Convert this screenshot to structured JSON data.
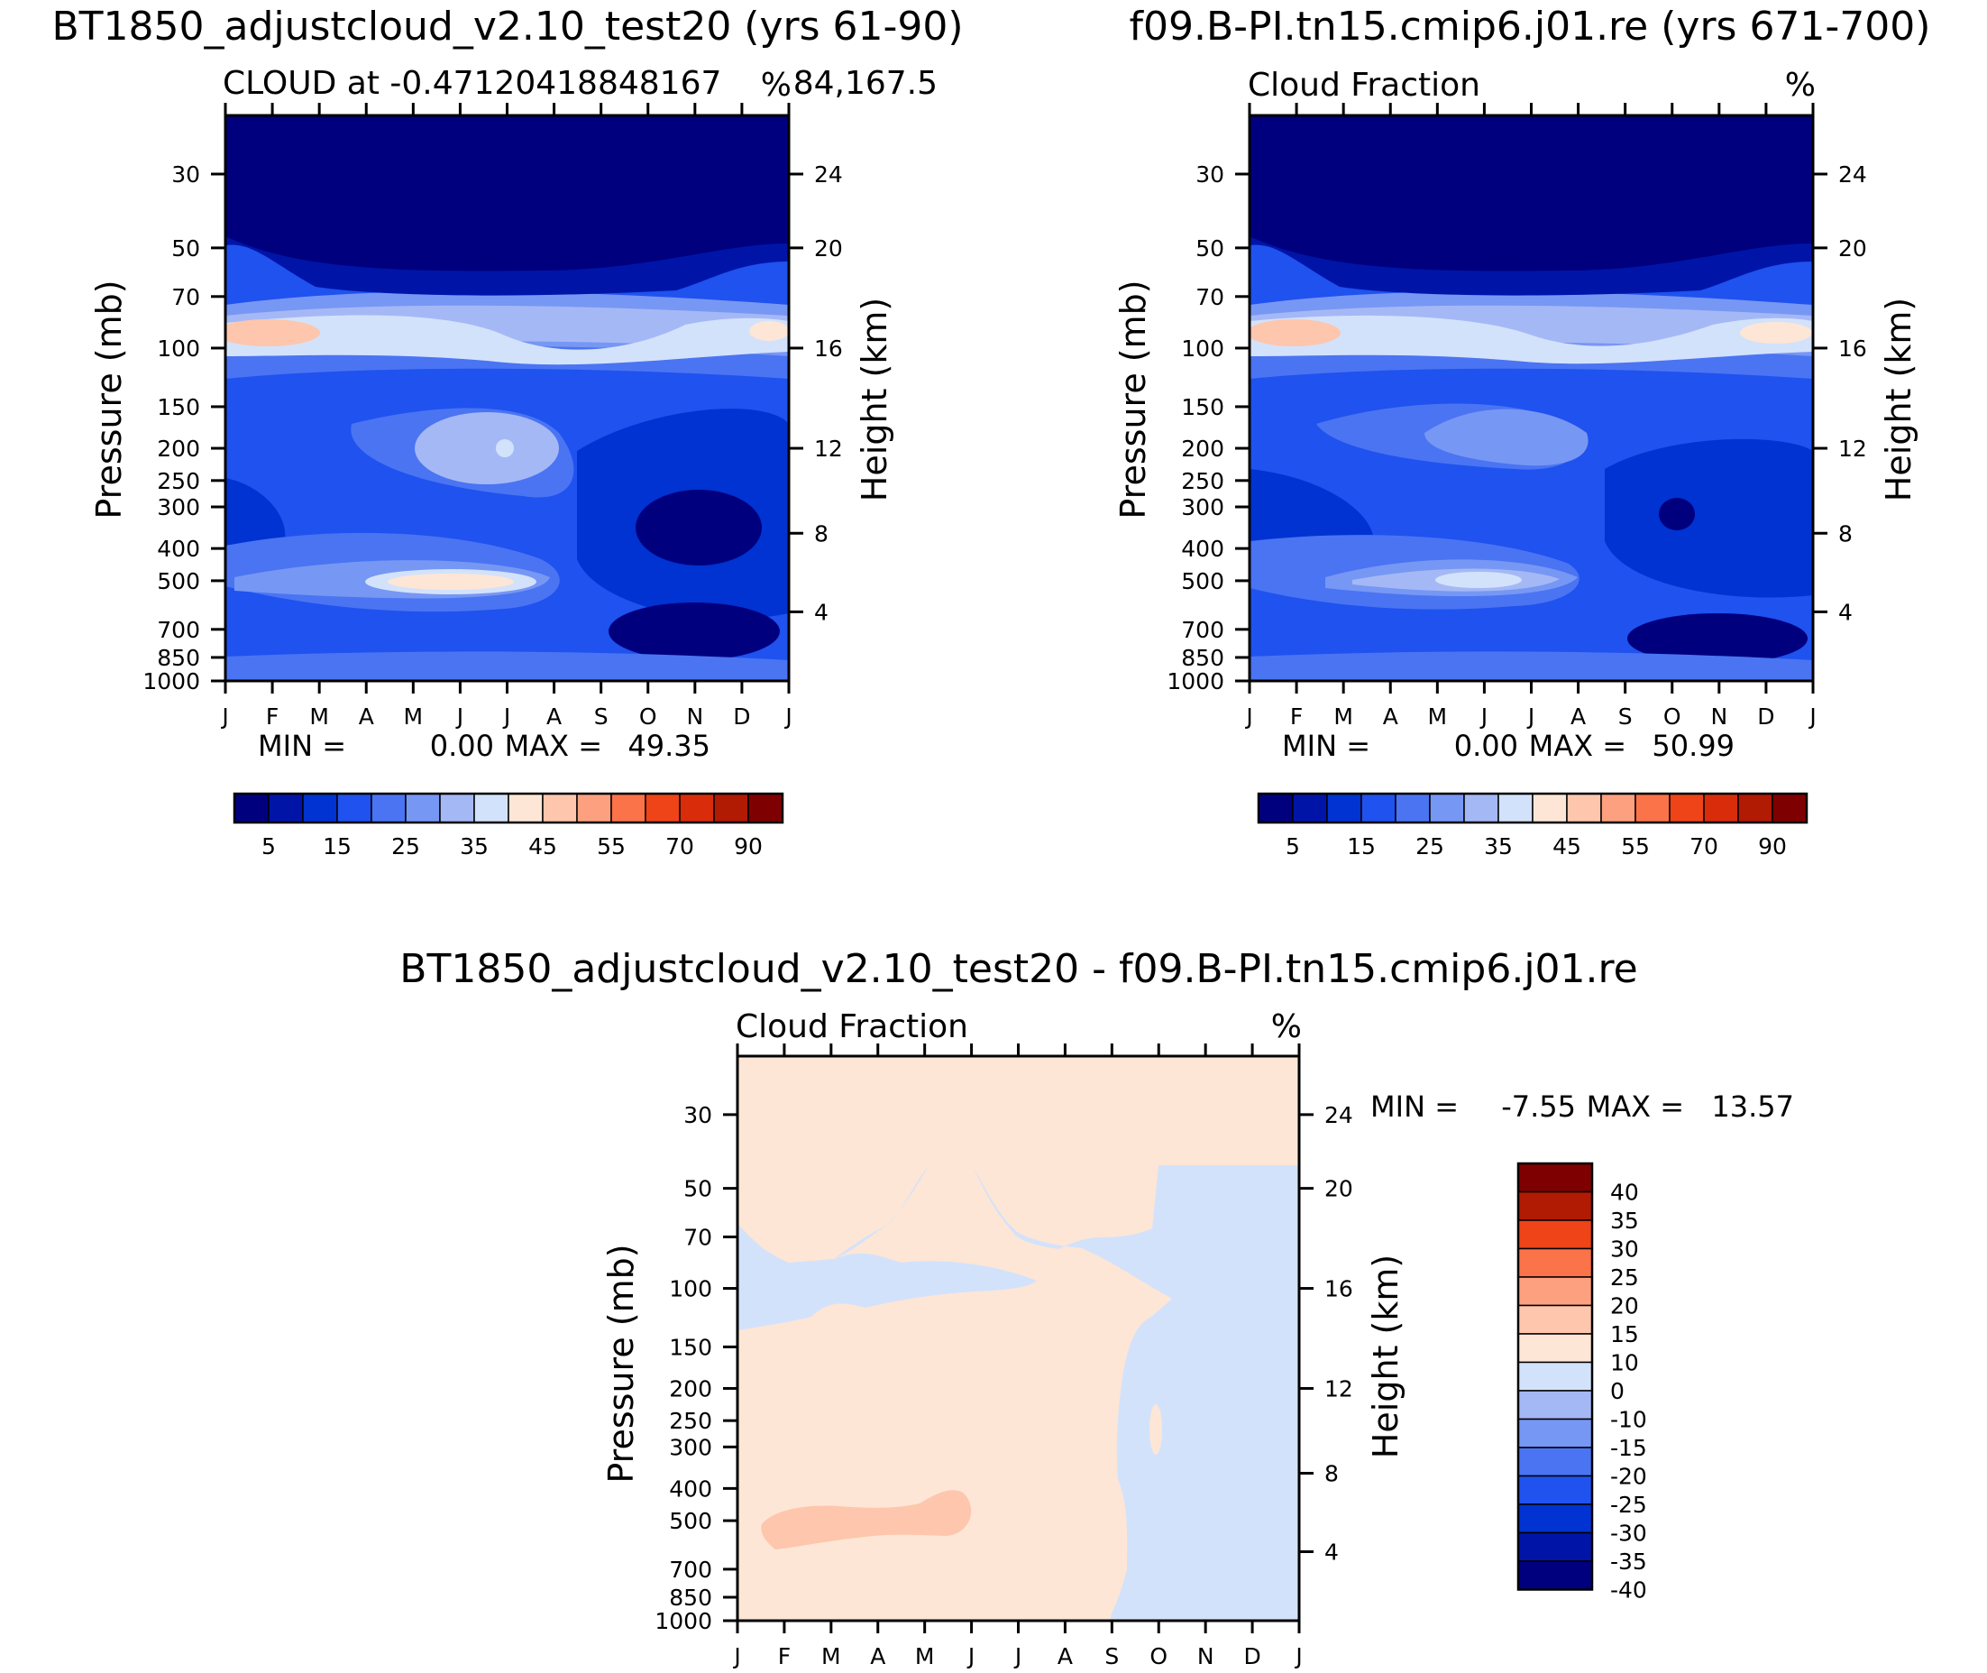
{
  "colors": {
    "seq": [
      "#00007f",
      "#0015a8",
      "#0033d1",
      "#1f52ef",
      "#4a74f2",
      "#7797f4",
      "#a5b8f6",
      "#d3e2fb",
      "#fde6d6",
      "#fdc6ad",
      "#fda07f",
      "#fb7348",
      "#ee4418",
      "#d82c0a",
      "#b11a03",
      "#7f0000"
    ],
    "diff": [
      "#00007f",
      "#0015a8",
      "#0033d1",
      "#1f52ef",
      "#4a74f2",
      "#7797f4",
      "#a5b8f6",
      "#d3e2fb",
      "#fde6d6",
      "#fdc6ad",
      "#fda07f",
      "#fb7348",
      "#ee4418",
      "#b11a03",
      "#7f0000"
    ]
  },
  "chart_data": [
    {
      "type": "contour",
      "title": "BT1850_adjustcloud_v2.10_test20 (yrs 61-90)",
      "subtitle_left": "CLOUD at -0.47120418848167",
      "subtitle_right": "84,167.5",
      "units": "%",
      "xlabel": "",
      "ylabel": "Pressure (mb)",
      "ylabel_right": "Height (km)",
      "x_ticks": [
        "J",
        "F",
        "M",
        "A",
        "M",
        "J",
        "J",
        "A",
        "S",
        "O",
        "N",
        "D",
        "J"
      ],
      "y_ticks": [
        "30",
        "50",
        "70",
        "100",
        "150",
        "200",
        "250",
        "300",
        "400",
        "500",
        "700",
        "850",
        "1000"
      ],
      "y_ticks_right": [
        "24",
        "20",
        "16",
        "12",
        "8",
        "4"
      ],
      "stats": {
        "min_label": "MIN =",
        "min_value": "0.00",
        "max_label": "MAX =",
        "max_value": "49.35"
      },
      "colorbar_labels": [
        "5",
        "15",
        "25",
        "35",
        "45",
        "55",
        "70",
        "90"
      ],
      "min": 0.0,
      "max": 49.35
    },
    {
      "type": "contour",
      "title": "f09.B-PI.tn15.cmip6.j01.re (yrs 671-700)",
      "subtitle_left": "Cloud Fraction",
      "subtitle_right": "",
      "units": "%",
      "xlabel": "",
      "ylabel": "Pressure (mb)",
      "ylabel_right": "Height (km)",
      "x_ticks": [
        "J",
        "F",
        "M",
        "A",
        "M",
        "J",
        "J",
        "A",
        "S",
        "O",
        "N",
        "D",
        "J"
      ],
      "y_ticks": [
        "30",
        "50",
        "70",
        "100",
        "150",
        "200",
        "250",
        "300",
        "400",
        "500",
        "700",
        "850",
        "1000"
      ],
      "y_ticks_right": [
        "24",
        "20",
        "16",
        "12",
        "8",
        "4"
      ],
      "stats": {
        "min_label": "MIN =",
        "min_value": "0.00",
        "max_label": "MAX =",
        "max_value": "50.99"
      },
      "colorbar_labels": [
        "5",
        "15",
        "25",
        "35",
        "45",
        "55",
        "70",
        "90"
      ],
      "min": 0.0,
      "max": 50.99
    },
    {
      "type": "contour",
      "title": "BT1850_adjustcloud_v2.10_test20 - f09.B-PI.tn15.cmip6.j01.re",
      "subtitle_left": "Cloud Fraction",
      "subtitle_right": "",
      "units": "%",
      "xlabel": "",
      "ylabel": "Pressure (mb)",
      "ylabel_right": "Height (km)",
      "x_ticks": [
        "J",
        "F",
        "M",
        "A",
        "M",
        "J",
        "J",
        "A",
        "S",
        "O",
        "N",
        "D",
        "J"
      ],
      "y_ticks": [
        "30",
        "50",
        "70",
        "100",
        "150",
        "200",
        "250",
        "300",
        "400",
        "500",
        "700",
        "850",
        "1000"
      ],
      "y_ticks_right": [
        "24",
        "20",
        "16",
        "12",
        "8",
        "4"
      ],
      "stats": {
        "min_label": "MIN =",
        "min_value": "-7.55",
        "max_label": "MAX =",
        "max_value": "13.57"
      },
      "colorbar_labels": [
        "40",
        "35",
        "30",
        "25",
        "20",
        "15",
        "10",
        "0",
        "-10",
        "-15",
        "-20",
        "-25",
        "-30",
        "-35",
        "-40"
      ],
      "min": -7.55,
      "max": 13.57
    }
  ]
}
